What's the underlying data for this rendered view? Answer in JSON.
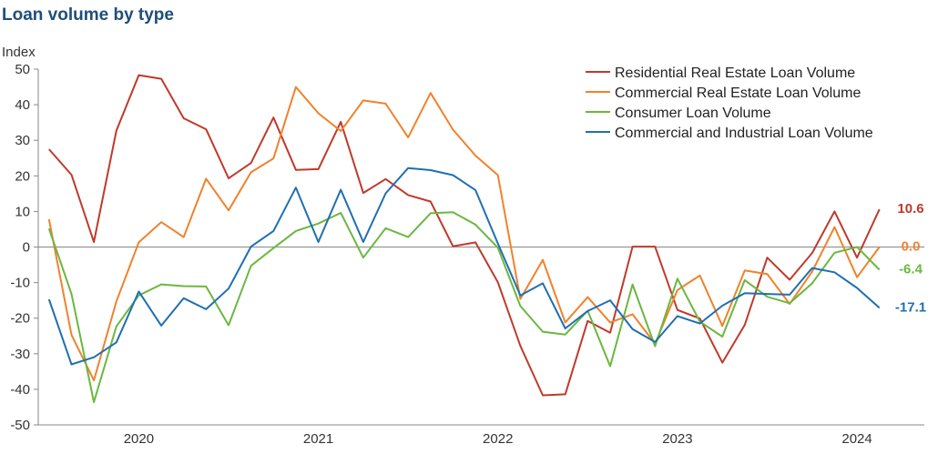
{
  "chart_data": {
    "type": "line",
    "title": "Loan volume by type",
    "ylabel": "Index",
    "ylim": [
      -50,
      50
    ],
    "yticks": [
      50,
      40,
      30,
      20,
      10,
      0,
      -10,
      -20,
      -30,
      -40,
      -50
    ],
    "x_tick_labels": [
      {
        "label": "2020",
        "x": 2020.0
      },
      {
        "label": "2021",
        "x": 2021.0
      },
      {
        "label": "2022",
        "x": 2022.0
      },
      {
        "label": "2023",
        "x": 2023.0
      },
      {
        "label": "2024",
        "x": 2024.0
      }
    ],
    "x_start": 2019.5,
    "x_step": 0.125,
    "xlim": [
      2019.44,
      2024.375
    ],
    "legend_position": "top-right",
    "series": [
      {
        "name": "Residential Real Estate Loan Volume",
        "color": "#c0392b",
        "end_label": "10.6",
        "values": [
          27.5,
          20.3,
          1.4,
          32.7,
          48.3,
          47.3,
          36.2,
          33.1,
          19.3,
          23.6,
          36.4,
          21.7,
          21.9,
          35.2,
          15.2,
          19.1,
          14.6,
          12.8,
          0.2,
          1.3,
          -9.9,
          -27.8,
          -41.7,
          -41.4,
          -20.8,
          -24.1,
          0.1,
          0.1,
          -17.7,
          -20.1,
          -32.5,
          -21.9,
          -3.0,
          -9.2,
          -1.7,
          10.0,
          -3.0,
          10.6
        ]
      },
      {
        "name": "Commercial Real Estate Loan Volume",
        "color": "#f0822c",
        "end_label": "0.0",
        "values": [
          7.8,
          -24.7,
          -37.5,
          -15.3,
          1.3,
          7.0,
          2.8,
          19.2,
          10.3,
          21.0,
          24.9,
          45.0,
          37.6,
          32.6,
          41.2,
          40.3,
          30.8,
          43.3,
          33.0,
          25.7,
          20.2,
          -14.6,
          -3.6,
          -21.2,
          -14.1,
          -21.2,
          -18.9,
          -27.2,
          -12.1,
          -8.0,
          -22.2,
          -6.6,
          -7.6,
          -16.0,
          -6.9,
          5.6,
          -8.5,
          0.0
        ]
      },
      {
        "name": "Consumer Loan Volume",
        "color": "#6ab83f",
        "end_label": "-6.4",
        "values": [
          5.2,
          -13.2,
          -43.6,
          -22.3,
          -13.6,
          -10.5,
          -11.0,
          -11.1,
          -22.0,
          -5.3,
          -0.3,
          4.5,
          6.6,
          9.6,
          -3.0,
          5.3,
          2.8,
          9.5,
          9.8,
          6.3,
          -0.2,
          -16.6,
          -23.8,
          -24.6,
          -17.9,
          -33.5,
          -10.5,
          -27.9,
          -8.9,
          -21.0,
          -25.2,
          -9.3,
          -14.0,
          -15.8,
          -10.2,
          -1.6,
          0.0,
          -6.4
        ]
      },
      {
        "name": "Commercial and Industrial Loan Volume",
        "color": "#1f6fb2",
        "end_label": "-17.1",
        "values": [
          -14.7,
          -33.0,
          -31.0,
          -26.8,
          -12.5,
          -22.1,
          -14.4,
          -17.5,
          -11.7,
          0.1,
          4.5,
          16.7,
          1.4,
          16.1,
          1.4,
          15.1,
          22.2,
          21.6,
          20.2,
          16.0,
          1.0,
          -13.6,
          -10.2,
          -22.9,
          -18.0,
          -15.0,
          -23.1,
          -26.7,
          -19.4,
          -21.5,
          -16.5,
          -13.0,
          -13.2,
          -13.4,
          -5.9,
          -7.1,
          -11.5,
          -17.1
        ]
      }
    ]
  }
}
